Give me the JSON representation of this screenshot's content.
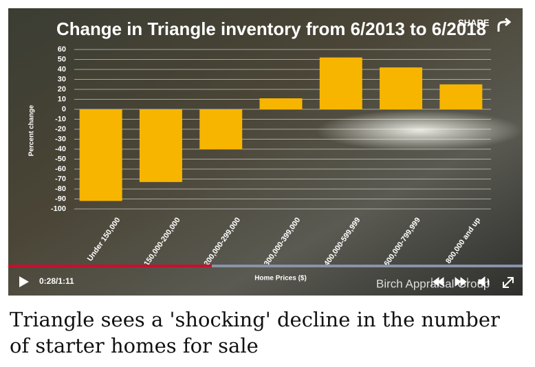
{
  "video": {
    "share": "SHARE",
    "time": "0:28/1:11",
    "watermark": "Birch Appraisal Group"
  },
  "chart_data": {
    "type": "bar",
    "title": "Change in Triangle inventory from 6/2013 to 6/2018",
    "categories": [
      "Under 150,000",
      "150,000-200,000",
      "200,000-299,000",
      "300,000-399,000",
      "400,000-599,999",
      "600,000-799,999",
      "800,000 and up"
    ],
    "values": [
      -92,
      -73,
      -40,
      11,
      52,
      42,
      25
    ],
    "color": "#f7b500",
    "x_label": "Home Prices ($)",
    "y_label": "Percent change",
    "ylim": [
      -100,
      60
    ],
    "yticks": [
      60,
      50,
      40,
      30,
      20,
      10,
      0,
      -10,
      -20,
      -30,
      -40,
      -50,
      -60,
      -70,
      -80,
      -90,
      -100
    ],
    "grid": true
  },
  "headline": "Triangle sees a 'shocking' decline in the number of starter homes for sale"
}
